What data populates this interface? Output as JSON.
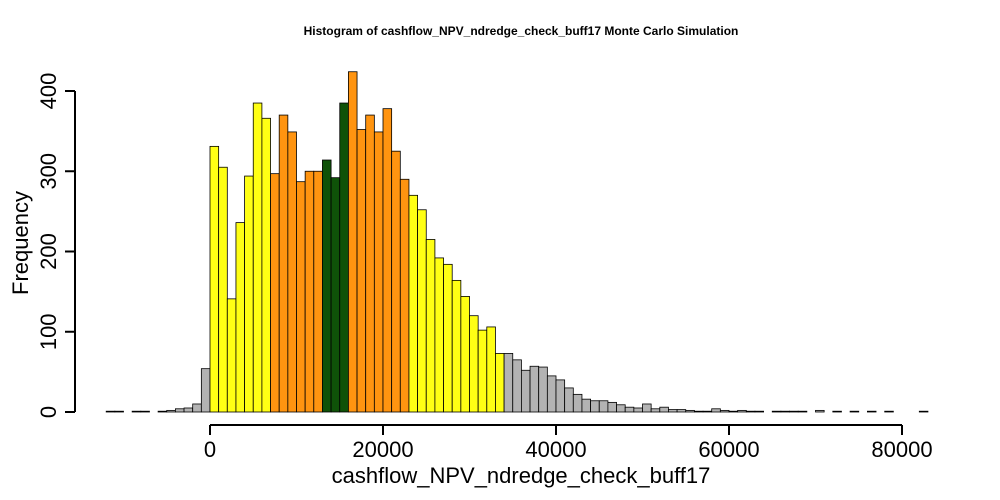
{
  "chart_data": {
    "type": "bar",
    "title": "Histogram of  cashflow_NPV_ndredge_check_buff17  Monte Carlo Simulation",
    "xlabel": "cashflow_NPV_ndredge_check_buff17",
    "ylabel": "Frequency",
    "xlim": [
      -12000,
      84000
    ],
    "ylim": [
      0,
      420
    ],
    "bin_width": 1000,
    "bin_start": -12000,
    "x_ticks": [
      0,
      20000,
      40000,
      60000,
      80000
    ],
    "y_ticks": [
      0,
      100,
      200,
      300,
      400
    ],
    "counts": [
      1,
      1,
      0,
      1,
      1,
      0,
      1,
      2,
      4,
      5,
      10,
      54,
      331,
      305,
      141,
      236,
      294,
      385,
      366,
      297,
      370,
      349,
      287,
      300,
      300,
      314,
      292,
      385,
      424,
      352,
      370,
      349,
      378,
      325,
      290,
      270,
      252,
      215,
      192,
      184,
      164,
      144,
      120,
      102,
      106,
      73,
      73,
      65,
      52,
      57,
      56,
      45,
      40,
      30,
      22,
      16,
      14,
      14,
      12,
      9,
      6,
      5,
      10,
      4,
      6,
      3,
      3,
      2,
      1,
      1,
      4,
      2,
      1,
      2,
      1,
      1,
      0,
      1,
      1,
      1,
      1,
      0,
      2,
      0,
      1,
      0,
      1,
      0,
      1,
      0,
      1,
      0,
      0,
      0,
      1,
      0
    ],
    "band_colors": [
      {
        "from": -12000,
        "to": 0,
        "color": "#b3b3b3"
      },
      {
        "from": 0,
        "to": 7000,
        "color": "#ffff14"
      },
      {
        "from": 7000,
        "to": 13000,
        "color": "#ff9410"
      },
      {
        "from": 13000,
        "to": 16000,
        "color": "#0f5208"
      },
      {
        "from": 16000,
        "to": 23000,
        "color": "#ff9410"
      },
      {
        "from": 23000,
        "to": 34000,
        "color": "#ffff14"
      },
      {
        "from": 34000,
        "to": 84000,
        "color": "#b3b3b3"
      }
    ],
    "grid": false,
    "legend": "none"
  }
}
